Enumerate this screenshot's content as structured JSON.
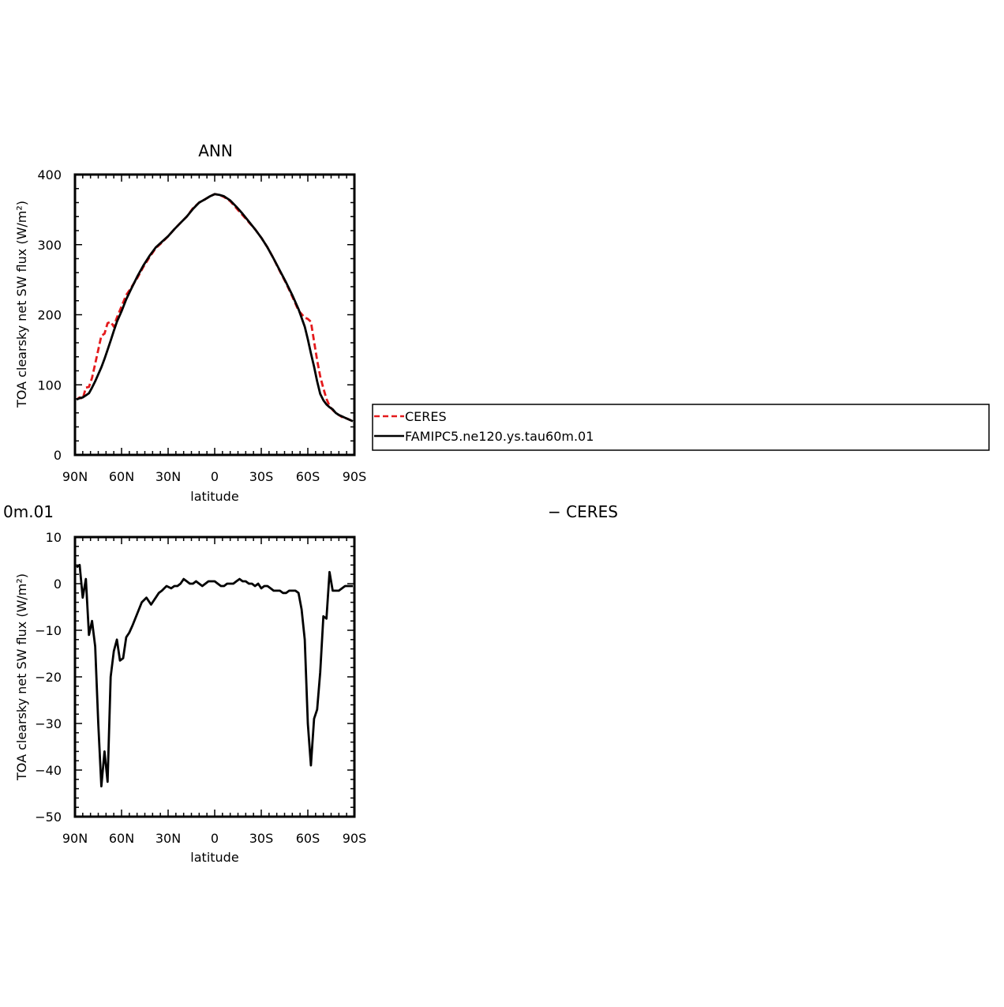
{
  "chart_data": [
    {
      "type": "line",
      "title": "ANN",
      "xlabel": "latitude",
      "ylabel": "TOA clearsky net SW flux (W/m²)",
      "xlim": [
        90,
        -90
      ],
      "ylim": [
        0,
        400
      ],
      "x_tick_labels": [
        "90N",
        "60N",
        "30N",
        "0",
        "30S",
        "60S",
        "90S"
      ],
      "y_tick_labels": [
        "0",
        "100",
        "200",
        "300",
        "400"
      ],
      "legend": {
        "placement": "right",
        "entries": [
          "CERES",
          "FAMIPC5.ne120.ys.tau60m.01"
        ]
      },
      "series": [
        {
          "name": "CERES",
          "color": "#e41a1c",
          "style": "dashed",
          "x": [
            89,
            87,
            85,
            83,
            81,
            79,
            77,
            75,
            73,
            71,
            69,
            67,
            65,
            63,
            60,
            57,
            54,
            50,
            46,
            42,
            38,
            34,
            30,
            26,
            22,
            18,
            14,
            10,
            6,
            3,
            0,
            -3,
            -6,
            -10,
            -14,
            -18,
            -22,
            -26,
            -30,
            -34,
            -38,
            -42,
            -46,
            -50,
            -54,
            -58,
            -60,
            -62,
            -64,
            -66,
            -68,
            -70,
            -72,
            -74,
            -76,
            -78,
            -80,
            -82,
            -84,
            -86,
            -88,
            -89
          ],
          "values": [
            79,
            82,
            80,
            96,
            97,
            110,
            130,
            150,
            170,
            173,
            188,
            190,
            183,
            196,
            212,
            228,
            238,
            252,
            268,
            282,
            295,
            303,
            312,
            322,
            331,
            340,
            352,
            360,
            365,
            369,
            372,
            371,
            368,
            362,
            352,
            342,
            332,
            322,
            310,
            296,
            280,
            262,
            245,
            226,
            206,
            196,
            194,
            190,
            162,
            135,
            112,
            95,
            80,
            70,
            64,
            60,
            57,
            54,
            53,
            51,
            49,
            48
          ]
        },
        {
          "name": "FAMIPC5.ne120.ys.tau60m.01",
          "color": "#000000",
          "style": "solid",
          "x": [
            89,
            87,
            85,
            83,
            81,
            79,
            77,
            75,
            73,
            71,
            69,
            67,
            65,
            63,
            60,
            57,
            54,
            50,
            46,
            42,
            38,
            34,
            30,
            26,
            22,
            18,
            14,
            10,
            6,
            3,
            0,
            -3,
            -6,
            -10,
            -14,
            -18,
            -22,
            -26,
            -30,
            -34,
            -38,
            -42,
            -46,
            -50,
            -54,
            -58,
            -60,
            -62,
            -64,
            -66,
            -68,
            -70,
            -72,
            -74,
            -76,
            -78,
            -80,
            -82,
            -84,
            -86,
            -88,
            -89
          ],
          "values": [
            79,
            81,
            82,
            85,
            88,
            96,
            105,
            115,
            125,
            137,
            150,
            163,
            177,
            190,
            205,
            222,
            236,
            254,
            270,
            284,
            296,
            304,
            312,
            322,
            331,
            340,
            351,
            360,
            365,
            369,
            372,
            371,
            369,
            363,
            354,
            344,
            333,
            322,
            310,
            296,
            280,
            263,
            246,
            228,
            208,
            183,
            165,
            145,
            126,
            105,
            87,
            78,
            72,
            68,
            65,
            60,
            57,
            55,
            53,
            51,
            49,
            48
          ]
        }
      ]
    },
    {
      "type": "line",
      "title_fragment_left": "0m.01",
      "title_fragment_right": "−  CERES",
      "xlabel": "latitude",
      "ylabel": "TOA clearsky net SW flux (W/m²)",
      "xlim": [
        90,
        -90
      ],
      "ylim": [
        -50,
        10
      ],
      "x_tick_labels": [
        "90N",
        "60N",
        "30N",
        "0",
        "30S",
        "60S",
        "90S"
      ],
      "y_tick_labels": [
        "−50",
        "−40",
        "−30",
        "−20",
        "−10",
        "0",
        "10"
      ],
      "series": [
        {
          "color": "#000000",
          "style": "solid",
          "x": [
            89,
            87,
            85,
            83,
            81,
            79,
            77,
            75,
            73,
            71,
            69,
            67,
            65,
            63,
            61,
            59,
            57,
            55,
            53,
            50,
            47,
            44,
            41,
            38,
            36,
            34,
            31,
            28,
            26,
            24,
            22,
            20,
            18,
            16,
            14,
            12,
            10,
            8,
            6,
            4,
            2,
            0,
            -2,
            -4,
            -6,
            -8,
            -10,
            -12,
            -14,
            -16,
            -18,
            -20,
            -22,
            -24,
            -26,
            -28,
            -30,
            -32,
            -34,
            -36,
            -38,
            -40,
            -42,
            -44,
            -46,
            -48,
            -50,
            -52,
            -54,
            -56,
            -58,
            -60,
            -62,
            -64,
            -66,
            -68,
            -70,
            -72,
            -74,
            -76,
            -78,
            -80,
            -82,
            -84,
            -86,
            -88,
            -89
          ],
          "values": [
            3.5,
            4,
            -3,
            1,
            -11,
            -8,
            -13.5,
            -30,
            -43.5,
            -36,
            -42.5,
            -20,
            -14.5,
            -12,
            -16.5,
            -16,
            -11.5,
            -10.5,
            -9,
            -6.5,
            -4,
            -3,
            -4.5,
            -3,
            -2,
            -1.5,
            -0.5,
            -1,
            -0.5,
            -0.5,
            0,
            1,
            0.5,
            0,
            0,
            0.5,
            0,
            -0.5,
            0,
            0.5,
            0.5,
            0.5,
            0,
            -0.5,
            -0.5,
            0,
            0,
            0,
            0.5,
            1,
            0.5,
            0.5,
            0,
            0,
            -0.5,
            0,
            -1,
            -0.5,
            -0.5,
            -1,
            -1.5,
            -1.5,
            -1.5,
            -2,
            -2,
            -1.5,
            -1.5,
            -1.5,
            -2,
            -5.5,
            -12,
            -30,
            -39,
            -29,
            -27,
            -19,
            -7,
            -7.5,
            2.5,
            -1.5,
            -1.5,
            -1.5,
            -1,
            -0.5,
            -0.5,
            -0.5,
            -0.5
          ]
        }
      ]
    }
  ]
}
